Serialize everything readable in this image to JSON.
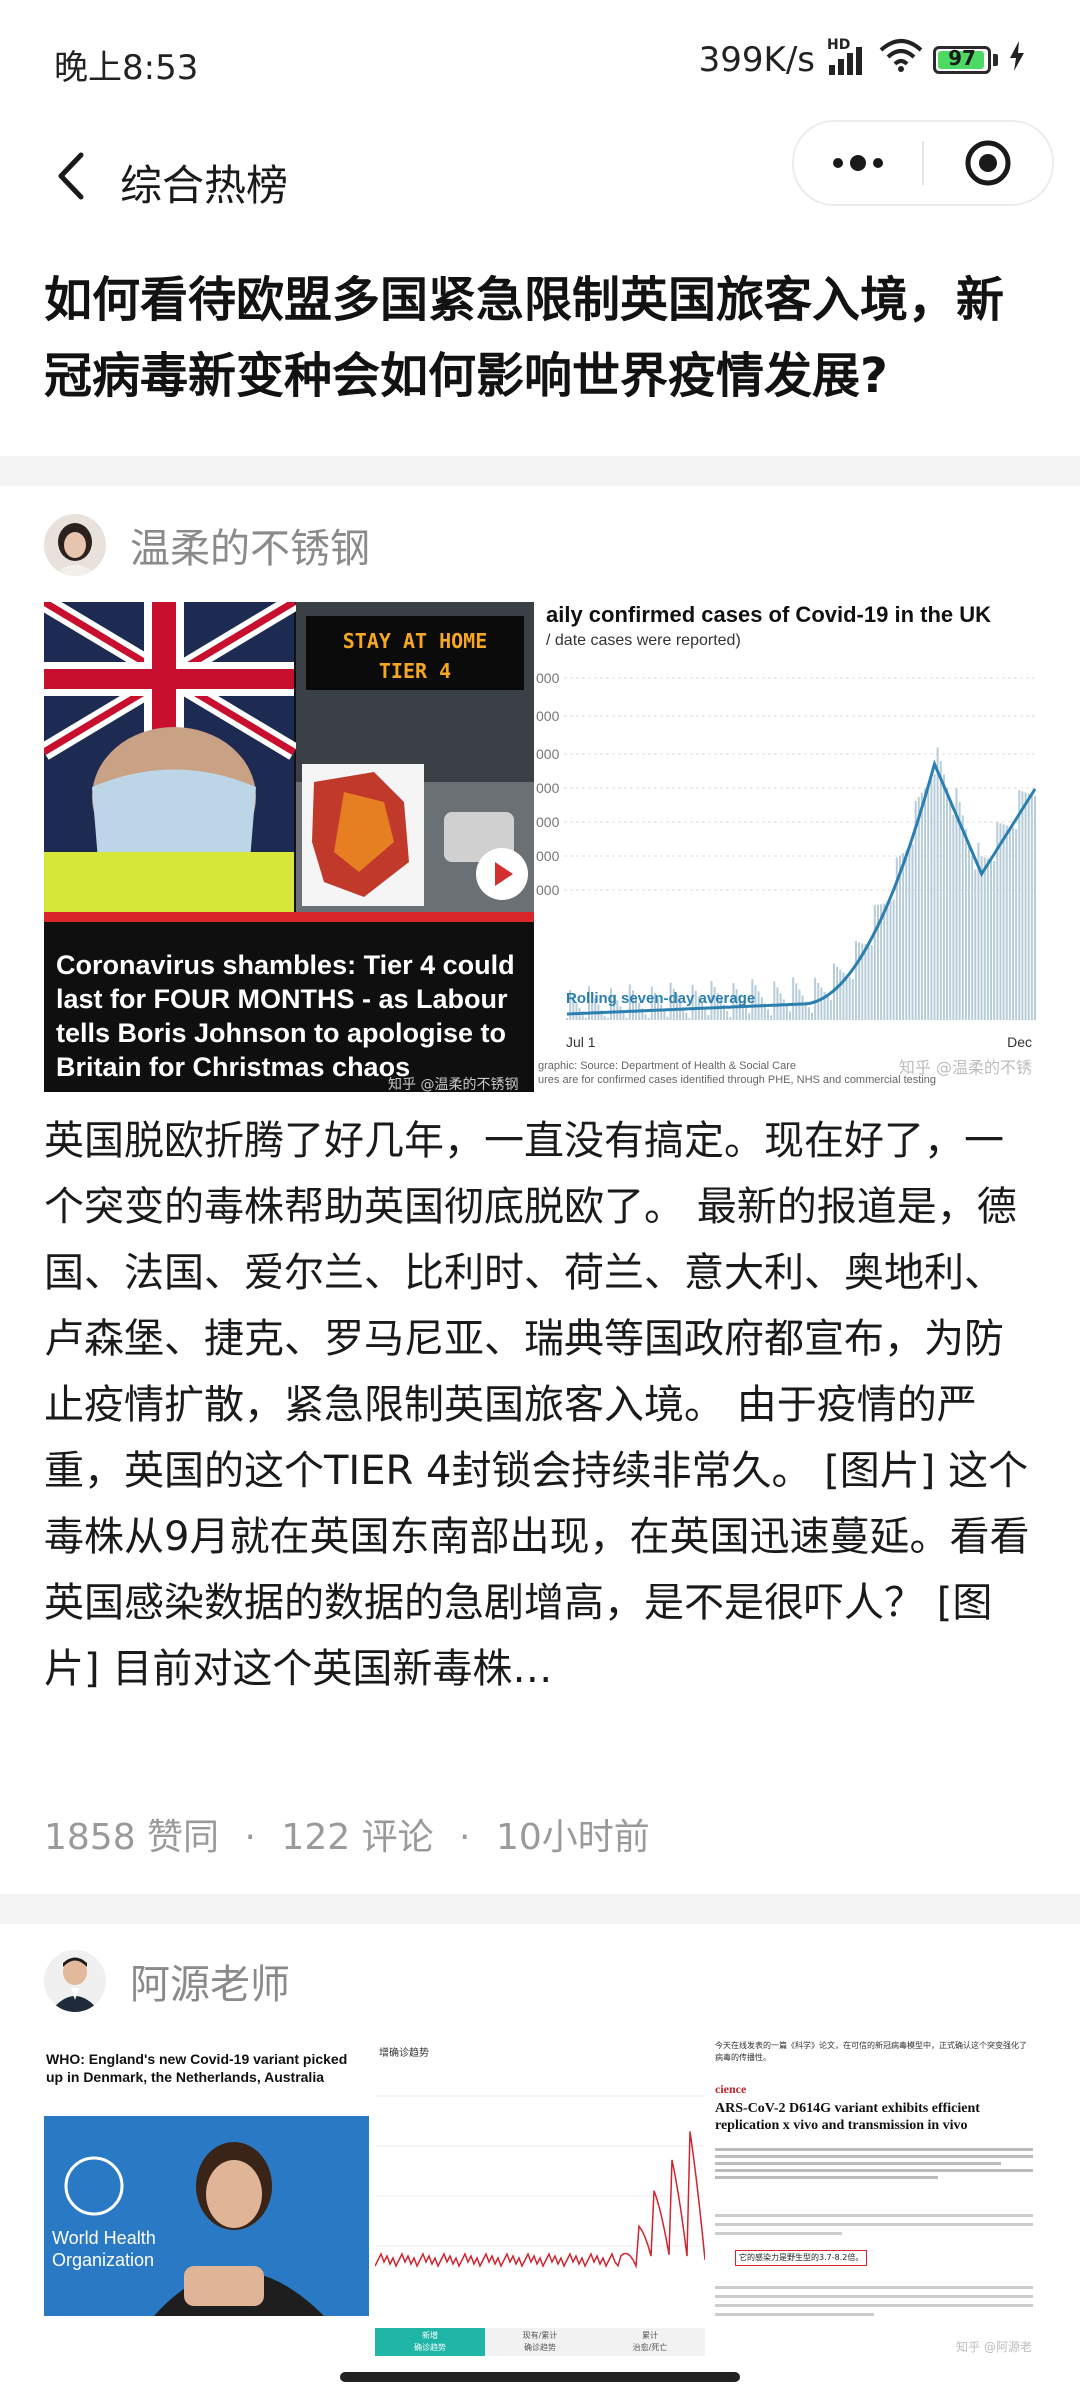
{
  "status_bar": {
    "time": "晚上8:53",
    "net_speed": "399K/s",
    "hd_label": "HD",
    "battery": "97",
    "battery_level": 0.97
  },
  "nav": {
    "title": "综合热榜"
  },
  "question": {
    "title": "如何看待欧盟多国紧急限制英国旅客入境，新冠病毒新变种会如何影响世界疫情发展?"
  },
  "answers": [
    {
      "author": "温柔的不锈钢",
      "image1": {
        "sign_line1": "STAY AT HOME",
        "sign_line2": "TIER 4",
        "headline": "Coronavirus shambles: Tier 4 could last for FOUR MONTHS - as Labour tells Boris Johnson to apologise to Britain for Christmas chaos",
        "watermark": "知乎 @温柔的不锈钢"
      },
      "image2": {
        "title": "aily confirmed cases of Covid-19 in the UK",
        "subtitle": "/ date cases were reported)",
        "legend": "Rolling seven-day average",
        "x_start": "Jul 1",
        "x_end": "Dec",
        "tick_label": "000",
        "source_line1": "graphic: Source: Department of Health & Social Care",
        "source_line2": "ures are for confirmed cases identified through PHE, NHS and commercial testing",
        "watermark": "知乎 @温柔的不锈"
      },
      "text": "英国脱欧折腾了好几年，一直没有搞定。现在好了，一个突变的毒株帮助英国彻底脱欧了。 最新的报道是，德国、法国、爱尔兰、比利时、荷兰、意大利、奥地利、卢森堡、捷克、罗马尼亚、瑞典等国政府都宣布，为防止疫情扩散，紧急限制英国旅客入境。 由于疫情的严重，英国的这个TIER 4封锁会持续非常久。 [图片] 这个毒株从9月就在英国东南部出现，在英国迅速蔓延。看看英国感染数据的数据的急剧增高，是不是很吓人？ [图片] 目前对这个英国新毒株…",
      "likes": "1858 赞同",
      "comments": "122 评论",
      "time": "10小时前",
      "dot": "·"
    },
    {
      "author": "阿源老师",
      "image1": {
        "headline": "WHO: England's new Covid-19 variant picked up in Denmark, the Netherlands, Australia",
        "logo_text1": "World Health",
        "logo_text2": "Organization"
      },
      "image2": {
        "title": "增确诊趋势",
        "tab1a": "新增",
        "tab1b": "确诊趋势",
        "tab2a": "现有/累计",
        "tab2b": "确诊趋势",
        "tab3a": "累计",
        "tab3b": "治愈/死亡"
      },
      "image3": {
        "intro": "今天在线发表的一篇《科学》论文，在可信的新冠病毒模型中，正式确认这个突变强化了病毒的传播性。",
        "journal": "cience",
        "paper_title": "ARS-CoV-2 D614G variant exhibits efficient replication x vivo and transmission in vivo",
        "highlight": "它的感染力是野生型的3.7-8.2倍。",
        "watermark": "知乎 @阿源老"
      }
    }
  ]
}
